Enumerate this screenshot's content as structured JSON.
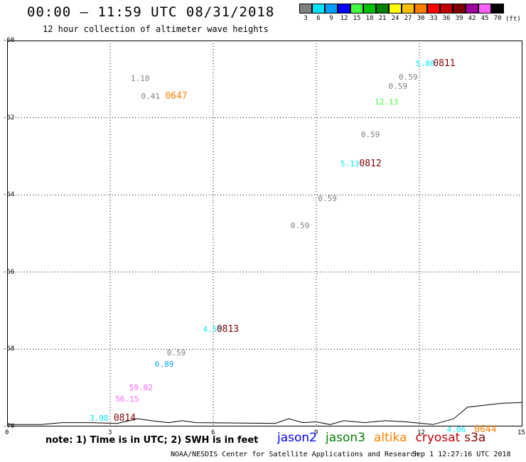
{
  "header": {
    "title": "00:00 – 11:59 UTC 08/31/2018",
    "subtitle": "12 hour collection of altimeter wave heights"
  },
  "color_scale": {
    "unit": "(ft)",
    "bins": [
      {
        "label": "3",
        "color": "#7f7f7f"
      },
      {
        "label": "6",
        "color": "#00e5ff"
      },
      {
        "label": "9",
        "color": "#00a0ff"
      },
      {
        "label": "12",
        "color": "#0000ff"
      },
      {
        "label": "15",
        "color": "#40ff40"
      },
      {
        "label": "18",
        "color": "#00c000"
      },
      {
        "label": "21",
        "color": "#008000"
      },
      {
        "label": "24",
        "color": "#ffff00"
      },
      {
        "label": "27",
        "color": "#ffc000"
      },
      {
        "label": "30",
        "color": "#ff8000"
      },
      {
        "label": "33",
        "color": "#ff0000"
      },
      {
        "label": "36",
        "color": "#c00000"
      },
      {
        "label": "39",
        "color": "#800000"
      },
      {
        "label": "42",
        "color": "#a000a0"
      },
      {
        "label": "45",
        "color": "#ff60ff"
      },
      {
        "label": "70",
        "color": "#000000"
      }
    ]
  },
  "map": {
    "lat_labels": [
      "-60",
      "-62",
      "-64",
      "-66",
      "-68",
      "-70"
    ],
    "lon_labels": [
      "0",
      "3",
      "6",
      "9",
      "12",
      "15"
    ],
    "lon_range": [
      0,
      15
    ],
    "lat_range": [
      -60,
      -70
    ],
    "observations": [
      {
        "value": "1.10",
        "lon": 3.6,
        "lat": -61.0,
        "color": "#7f7f7f"
      },
      {
        "value": "0.41",
        "lon": 3.9,
        "lat": -61.45,
        "color": "#7f7f7f"
      },
      {
        "value": "5.80",
        "lon": 11.9,
        "lat": -60.6,
        "color": "#00e5ff"
      },
      {
        "value": "0.59",
        "lon": 11.4,
        "lat": -60.95,
        "color": "#7f7f7f"
      },
      {
        "value": "0.59",
        "lon": 11.1,
        "lat": -61.2,
        "color": "#7f7f7f"
      },
      {
        "value": "12.13",
        "lon": 10.7,
        "lat": -61.6,
        "color": "#40ff40"
      },
      {
        "value": "0.59",
        "lon": 10.3,
        "lat": -62.45,
        "color": "#7f7f7f"
      },
      {
        "value": "5.13",
        "lon": 9.7,
        "lat": -63.2,
        "color": "#00e5ff"
      },
      {
        "value": "0.59",
        "lon": 9.05,
        "lat": -64.1,
        "color": "#7f7f7f"
      },
      {
        "value": "0.59",
        "lon": 8.25,
        "lat": -64.8,
        "color": "#7f7f7f"
      },
      {
        "value": "4.50",
        "lon": 5.7,
        "lat": -67.5,
        "color": "#00e5ff"
      },
      {
        "value": "0.59",
        "lon": 4.65,
        "lat": -68.1,
        "color": "#7f7f7f"
      },
      {
        "value": "6.89",
        "lon": 4.3,
        "lat": -68.4,
        "color": "#00a0ff"
      },
      {
        "value": "59.02",
        "lon": 3.55,
        "lat": -69.0,
        "color": "#ff60ff"
      },
      {
        "value": "56.15",
        "lon": 3.15,
        "lat": -69.3,
        "color": "#ff60ff"
      },
      {
        "value": "3.98",
        "lon": 2.4,
        "lat": -69.8,
        "color": "#00e5ff"
      },
      {
        "value": "4.06",
        "lon": 12.8,
        "lat": -70.1,
        "color": "#00e5ff"
      }
    ],
    "pass_times": [
      {
        "label": "0647",
        "lon": 4.6,
        "lat": -61.45,
        "color": "#ff8000"
      },
      {
        "label": "0811",
        "lon": 12.4,
        "lat": -60.6,
        "color": "#800000"
      },
      {
        "label": "0812",
        "lon": 10.25,
        "lat": -63.2,
        "color": "#800000"
      },
      {
        "label": "0813",
        "lon": 6.1,
        "lat": -67.5,
        "color": "#800000"
      },
      {
        "label": "0814",
        "lon": 3.1,
        "lat": -69.8,
        "color": "#800000"
      },
      {
        "label": "0644",
        "lon": 13.6,
        "lat": -70.1,
        "color": "#ff8000"
      }
    ],
    "coastline": [
      [
        0.0,
        -69.95
      ],
      [
        1.0,
        -69.95
      ],
      [
        1.6,
        -69.9
      ],
      [
        2.4,
        -69.9
      ],
      [
        3.2,
        -69.92
      ],
      [
        3.8,
        -69.8
      ],
      [
        4.2,
        -69.85
      ],
      [
        4.7,
        -69.9
      ],
      [
        5.1,
        -69.85
      ],
      [
        5.5,
        -69.9
      ],
      [
        7.8,
        -69.92
      ],
      [
        8.2,
        -69.8
      ],
      [
        8.6,
        -69.9
      ],
      [
        9.0,
        -69.88
      ],
      [
        9.4,
        -69.95
      ],
      [
        9.8,
        -69.85
      ],
      [
        10.4,
        -69.9
      ],
      [
        11.0,
        -69.85
      ],
      [
        11.6,
        -69.88
      ],
      [
        12.4,
        -69.95
      ],
      [
        13.0,
        -69.8
      ],
      [
        13.4,
        -69.5
      ],
      [
        13.9,
        -69.45
      ],
      [
        14.4,
        -69.4
      ],
      [
        15.0,
        -69.38
      ]
    ]
  },
  "footer": {
    "note": "note: 1) Time is in UTC; 2) SWH is in feet",
    "satellites": [
      {
        "name": "jason2",
        "color": "#0000ff"
      },
      {
        "name": "jason3",
        "color": "#008000"
      },
      {
        "name": "altika",
        "color": "#ff8000"
      },
      {
        "name": "cryosat",
        "color": "#c00000"
      },
      {
        "name": "s3a",
        "color": "#800000"
      }
    ],
    "credit": "NOAA/NESDIS Center for Satellite Applications and Research",
    "timestamp": "Sep  1 12:27:16 UTC 2018"
  }
}
